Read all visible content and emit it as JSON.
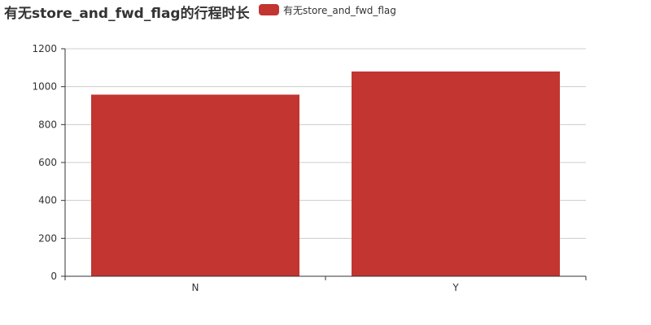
{
  "chart_data": {
    "type": "bar",
    "title": "有无store_and_fwd_flag的行程时长",
    "categories": [
      "N",
      "Y"
    ],
    "series": [
      {
        "name": "有无store_and_fwd_flag",
        "values": [
          958,
          1080
        ],
        "color": "#c23531"
      }
    ],
    "yticks": [
      "0",
      "200",
      "400",
      "600",
      "800",
      "1000",
      "1200"
    ],
    "ylim": [
      0,
      1200
    ],
    "grid": true,
    "legend_position": "top"
  }
}
